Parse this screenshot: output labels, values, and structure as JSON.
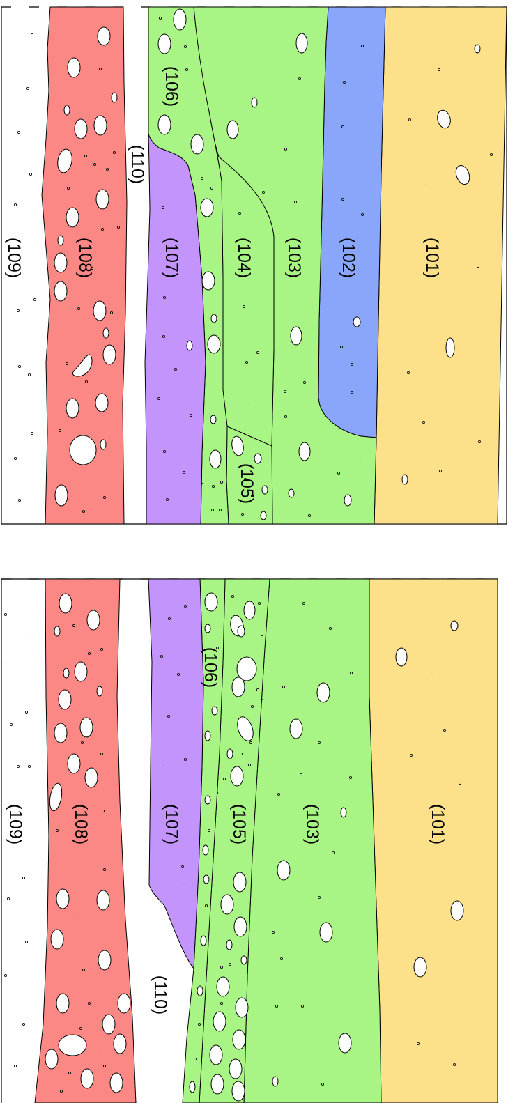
{
  "colors": {
    "layer_101": "#fce08a",
    "layer_102": "#8aa6fa",
    "layer_103": "#a8f585",
    "layer_104": "#a8f585",
    "layer_105": "#a8f585",
    "layer_106": "#a8f585",
    "layer_107": "#c394fb",
    "layer_108": "#fb8884",
    "layer_109": "#ffffff",
    "layer_110": "#ffffff"
  },
  "section_upper": {
    "labels": {
      "l101": "(101)",
      "l102": "(102)",
      "l103": "(103)",
      "l104": "(104)",
      "l105": "(105)",
      "l106": "(106)",
      "l107": "(107)",
      "l108": "(108)",
      "l109": "(109)",
      "l110": "(110)"
    }
  },
  "section_lower": {
    "labels": {
      "l101": "(101)",
      "l103": "(103)",
      "l105": "(105)",
      "l106": "(106)",
      "l107": "(107)",
      "l108": "(108)",
      "l109": "(109)",
      "l110": "(110)"
    }
  }
}
